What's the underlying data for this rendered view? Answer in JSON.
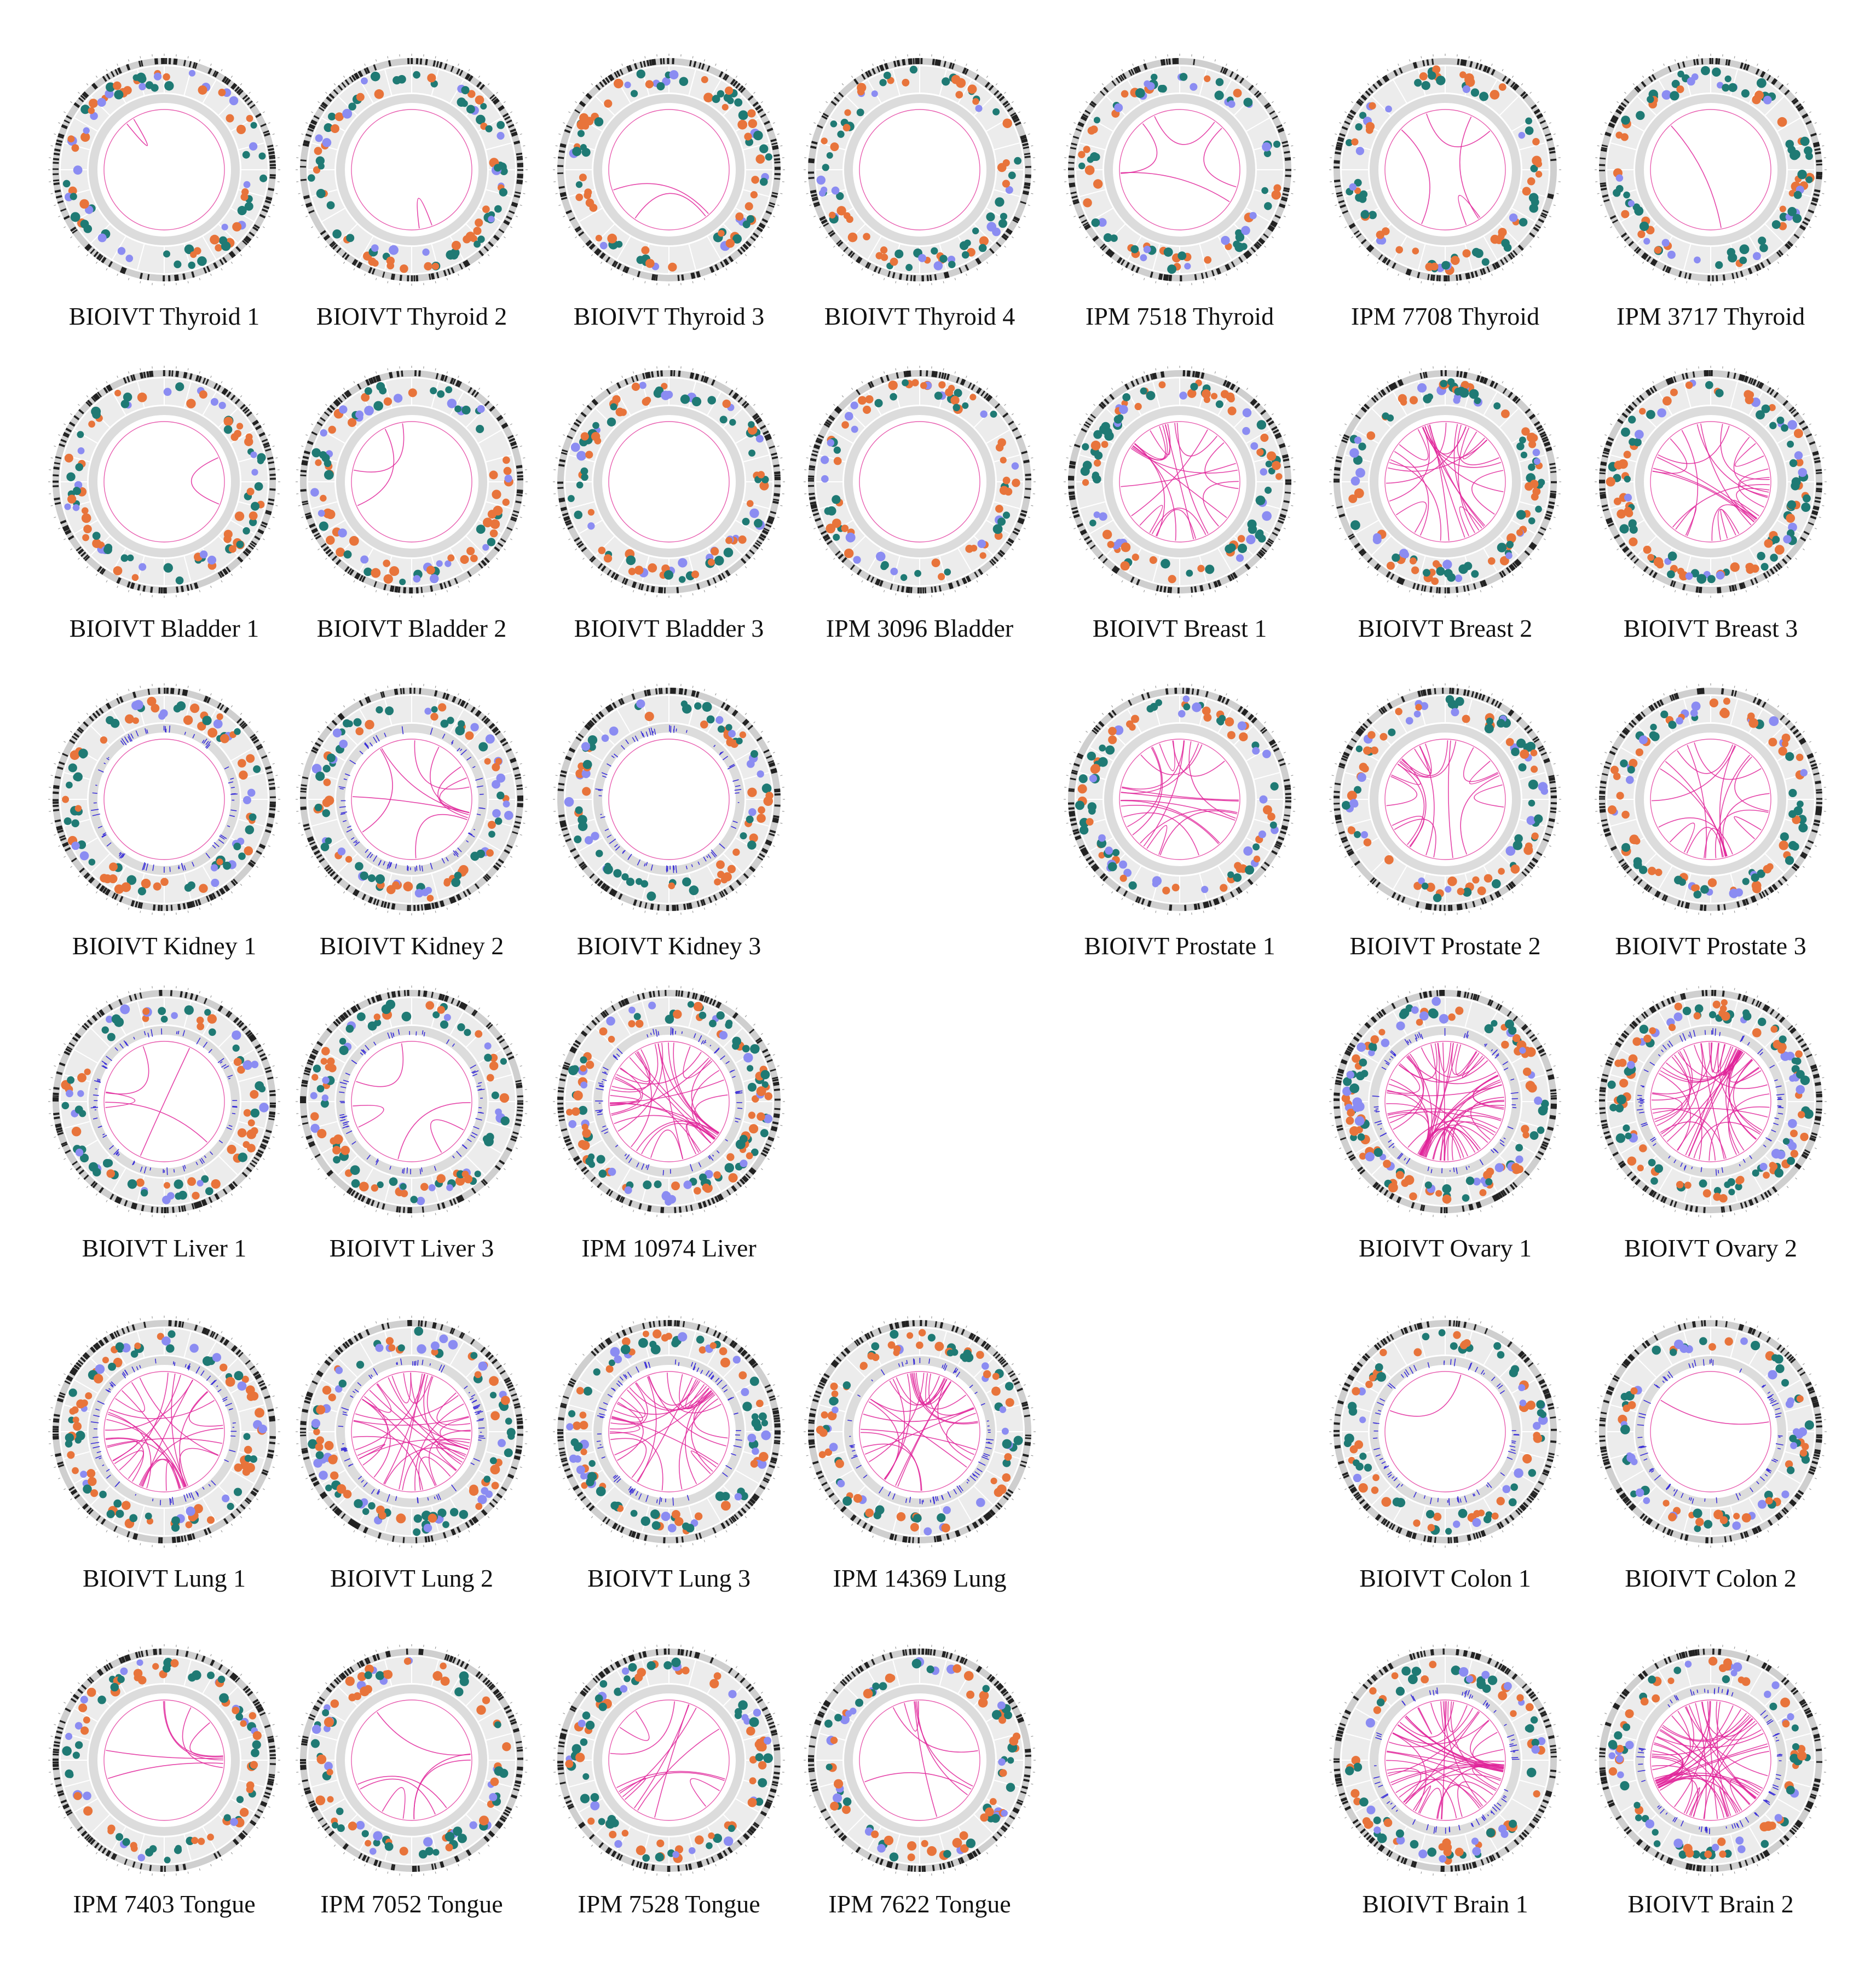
{
  "colors": {
    "ring_background": "#ececec",
    "ring_border": "#cfcfcf",
    "ideogram_band": "#222222",
    "dot_orange": "#e8743b",
    "dot_teal": "#1f7a74",
    "dot_lavender": "#8b8cf2",
    "link_magenta": "#e0249a",
    "cnv_blue": "#3a2fd8",
    "inner_ring_line": "#e85fb0"
  },
  "panels": [
    {
      "label": "BIOIVT Thyroid 1",
      "links": 1,
      "dot_density": 0.5,
      "cnv": false
    },
    {
      "label": "BIOIVT Thyroid 2",
      "links": 1,
      "dot_density": 0.55,
      "cnv": false
    },
    {
      "label": "BIOIVT Thyroid 3",
      "links": 2,
      "dot_density": 0.55,
      "cnv": false
    },
    {
      "label": "BIOIVT Thyroid 4",
      "links": 0,
      "dot_density": 0.55,
      "cnv": false
    },
    {
      "label": "IPM 7518 Thyroid",
      "links": 4,
      "dot_density": 0.45,
      "cnv": false
    },
    {
      "label": "IPM 7708 Thyroid",
      "links": 4,
      "dot_density": 0.55,
      "cnv": false
    },
    {
      "label": "IPM 3717 Thyroid",
      "links": 1,
      "dot_density": 0.6,
      "cnv": false
    },
    {
      "label": "BIOIVT Bladder 1",
      "links": 1,
      "dot_density": 0.55,
      "cnv": false
    },
    {
      "label": "BIOIVT Bladder 2",
      "links": 2,
      "dot_density": 0.6,
      "cnv": false
    },
    {
      "label": "BIOIVT Bladder 3",
      "links": 0,
      "dot_density": 0.6,
      "cnv": false
    },
    {
      "label": "IPM 3096 Bladder",
      "links": 0,
      "dot_density": 0.5,
      "cnv": false
    },
    {
      "label": "BIOIVT Breast 1",
      "links": 18,
      "dot_density": 0.7,
      "cnv": false
    },
    {
      "label": "BIOIVT Breast 2",
      "links": 22,
      "dot_density": 0.8,
      "cnv": false
    },
    {
      "label": "BIOIVT Breast 3",
      "links": 20,
      "dot_density": 0.8,
      "cnv": false
    },
    {
      "label": "BIOIVT Kidney 1",
      "links": 0,
      "dot_density": 0.55,
      "cnv": true
    },
    {
      "label": "BIOIVT Kidney 2",
      "links": 8,
      "dot_density": 0.6,
      "cnv": true
    },
    {
      "label": "BIOIVT Kidney 3",
      "links": 0,
      "dot_density": 0.5,
      "cnv": true
    },
    {
      "label": "BIOIVT Prostate 1",
      "links": 18,
      "dot_density": 0.6,
      "cnv": false
    },
    {
      "label": "BIOIVT Prostate 2",
      "links": 16,
      "dot_density": 0.6,
      "cnv": false
    },
    {
      "label": "BIOIVT Prostate 3",
      "links": 16,
      "dot_density": 0.65,
      "cnv": false
    },
    {
      "label": "BIOIVT Liver 1",
      "links": 4,
      "dot_density": 0.5,
      "cnv": true
    },
    {
      "label": "BIOIVT Liver 3",
      "links": 4,
      "dot_density": 0.6,
      "cnv": true
    },
    {
      "label": "IPM 10974 Liver",
      "links": 30,
      "dot_density": 0.9,
      "cnv": true
    },
    {
      "label": "BIOIVT Ovary 1",
      "links": 45,
      "dot_density": 1.0,
      "cnv": true
    },
    {
      "label": "BIOIVT Ovary 2",
      "links": 40,
      "dot_density": 0.95,
      "cnv": true
    },
    {
      "label": "BIOIVT Lung 1",
      "links": 24,
      "dot_density": 0.7,
      "cnv": true
    },
    {
      "label": "BIOIVT Lung 2",
      "links": 30,
      "dot_density": 0.75,
      "cnv": true
    },
    {
      "label": "BIOIVT Lung 3",
      "links": 26,
      "dot_density": 0.75,
      "cnv": true
    },
    {
      "label": "IPM 14369 Lung",
      "links": 24,
      "dot_density": 0.6,
      "cnv": true
    },
    {
      "label": "BIOIVT Colon 1",
      "links": 1,
      "dot_density": 0.5,
      "cnv": true
    },
    {
      "label": "BIOIVT Colon 2",
      "links": 1,
      "dot_density": 0.5,
      "cnv": true
    },
    {
      "label": "IPM 7403 Tongue",
      "links": 6,
      "dot_density": 0.55,
      "cnv": false
    },
    {
      "label": "IPM 7052 Tongue",
      "links": 6,
      "dot_density": 0.6,
      "cnv": false
    },
    {
      "label": "IPM 7528 Tongue",
      "links": 10,
      "dot_density": 0.65,
      "cnv": false
    },
    {
      "label": "IPM 7622 Tongue",
      "links": 6,
      "dot_density": 0.55,
      "cnv": false
    },
    {
      "label": "BIOIVT Brain 1",
      "links": 40,
      "dot_density": 0.55,
      "cnv": true
    },
    {
      "label": "BIOIVT Brain 2",
      "links": 45,
      "dot_density": 0.55,
      "cnv": true
    }
  ]
}
